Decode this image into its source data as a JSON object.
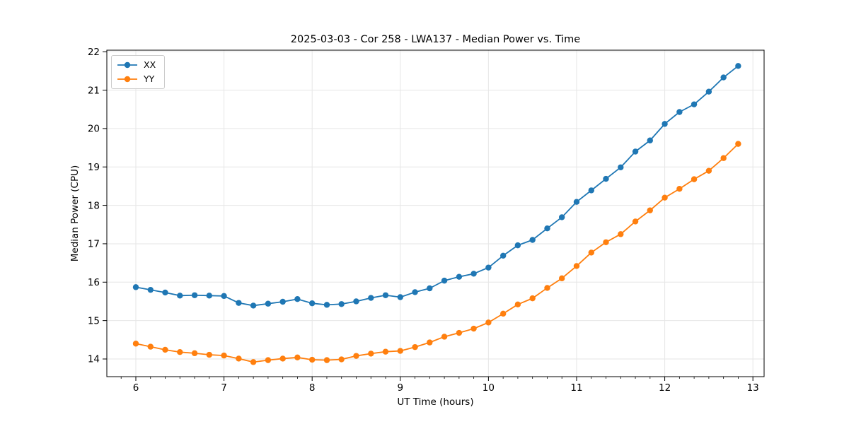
{
  "chart_data": {
    "type": "line",
    "title": "2025-03-03 - Cor 258 - LWA137 - Median Power vs. Time",
    "xlabel": "UT Time (hours)",
    "ylabel": "Median Power (CPU)",
    "xlim": [
      5.671,
      13.127
    ],
    "ylim": [
      13.54,
      22.04
    ],
    "x_ticks": [
      6,
      7,
      8,
      9,
      10,
      11,
      12,
      13
    ],
    "y_ticks": [
      14,
      15,
      16,
      17,
      18,
      19,
      20,
      21,
      22
    ],
    "x_minor_ticks_per_hour": 6,
    "grid": true,
    "legend_position": "upper left",
    "marker": "circle",
    "x": [
      6.0,
      6.167,
      6.333,
      6.5,
      6.667,
      6.833,
      7.0,
      7.167,
      7.333,
      7.5,
      7.667,
      7.833,
      8.0,
      8.167,
      8.333,
      8.5,
      8.667,
      8.833,
      9.0,
      9.167,
      9.333,
      9.5,
      9.667,
      9.833,
      10.0,
      10.167,
      10.333,
      10.5,
      10.667,
      10.833,
      11.0,
      11.167,
      11.333,
      11.5,
      11.667,
      11.833,
      12.0,
      12.167,
      12.333,
      12.5,
      12.667,
      12.833
    ],
    "series": [
      {
        "name": "XX",
        "color": "#1f77b4",
        "values": [
          15.87,
          15.8,
          15.73,
          15.65,
          15.66,
          15.65,
          15.64,
          15.46,
          15.39,
          15.44,
          15.49,
          15.56,
          15.45,
          15.41,
          15.43,
          15.5,
          15.59,
          15.66,
          15.61,
          15.74,
          15.84,
          16.04,
          16.14,
          16.22,
          16.38,
          16.69,
          16.96,
          17.1,
          17.4,
          17.69,
          18.09,
          18.39,
          18.69,
          18.99,
          19.4,
          19.69,
          20.12,
          20.43,
          20.63,
          20.96,
          21.33,
          21.63
        ]
      },
      {
        "name": "YY",
        "color": "#ff7f0e",
        "values": [
          14.4,
          14.32,
          14.24,
          14.18,
          14.15,
          14.11,
          14.09,
          14.01,
          13.92,
          13.97,
          14.01,
          14.04,
          13.98,
          13.97,
          13.99,
          14.08,
          14.14,
          14.19,
          14.21,
          14.31,
          14.43,
          14.58,
          14.68,
          14.79,
          14.95,
          15.18,
          15.42,
          15.58,
          15.85,
          16.1,
          16.42,
          16.77,
          17.04,
          17.25,
          17.58,
          17.87,
          18.2,
          18.43,
          18.68,
          18.9,
          19.23,
          19.6
        ]
      }
    ]
  },
  "colors": {
    "grid": "#e6e6e6",
    "spine": "#000000",
    "tick_label": "#000000",
    "legend_border": "#cccccc"
  }
}
